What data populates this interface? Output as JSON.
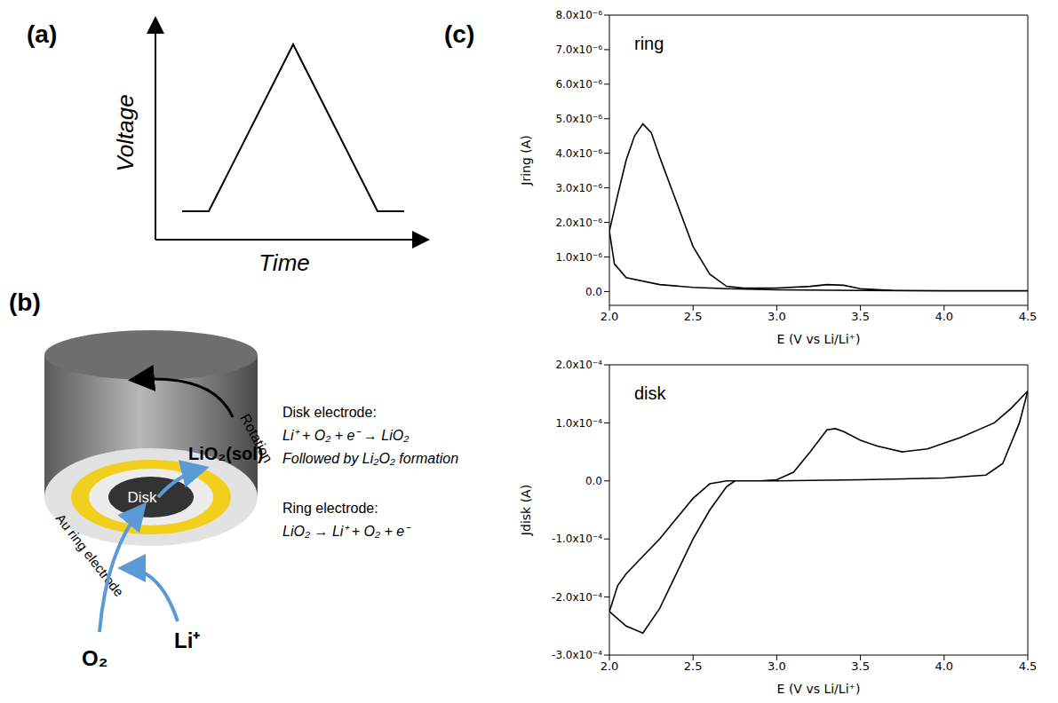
{
  "panels": {
    "a": {
      "label": "(a)",
      "xlabel": "Time",
      "ylabel": "Voltage"
    },
    "b": {
      "label": "(b)",
      "disk": "Disk",
      "rotation": "Rotation",
      "ring_label": "Au ring electrode",
      "product": "LiO₂(sol)",
      "reactant_1": "O₂",
      "reactant_2": "Li⁺",
      "reactions": [
        {
          "heading": "Disk electrode:",
          "lines": [
            "Li⁺ + O₂ + e⁻ → LiO₂",
            "Followed by Li₂O₂ formation"
          ]
        },
        {
          "heading": "Ring electrode:",
          "lines": [
            "LiO₂ → Li⁺ + O₂ + e⁻"
          ]
        }
      ]
    },
    "c": {
      "label": "(c)"
    }
  },
  "chart_data": [
    {
      "type": "line",
      "title": "ring",
      "xlabel": "E (V vs Li/Li⁺)",
      "ylabel": "Jring (A)",
      "color": "#000000",
      "x": [
        4.5,
        4.0,
        3.5,
        3.0,
        2.7,
        2.5,
        2.3,
        2.1,
        2.03,
        2.0,
        2.05,
        2.1,
        2.15,
        2.2,
        2.25,
        2.3,
        2.4,
        2.5,
        2.6,
        2.7,
        2.8,
        3.0,
        3.2,
        3.3,
        3.4,
        3.5,
        3.7,
        4.0,
        4.5
      ],
      "values": [
        2e-08,
        2e-08,
        3e-08,
        5e-08,
        8e-08,
        1.2e-07,
        2e-07,
        4e-07,
        8e-07,
        1.75e-06,
        2.8e-06,
        3.8e-06,
        4.5e-06,
        4.85e-06,
        4.6e-06,
        3.9e-06,
        2.6e-06,
        1.3e-06,
        5e-07,
        1.5e-07,
        1e-07,
        1e-07,
        1.5e-07,
        2e-07,
        1.8e-07,
        8e-08,
        3e-08,
        2e-08,
        2e-08
      ],
      "xlim": [
        2.0,
        4.5
      ],
      "xticks": [
        {
          "value": 2.0,
          "label": "2.0"
        },
        {
          "value": 2.5,
          "label": "2.5"
        },
        {
          "value": 3.0,
          "label": "3.0"
        },
        {
          "value": 3.5,
          "label": "3.5"
        },
        {
          "value": 4.0,
          "label": "4.0"
        },
        {
          "value": 4.5,
          "label": "4.5"
        }
      ],
      "ylim": [
        -4e-07,
        8e-06
      ],
      "yticks": [
        {
          "value": 0,
          "label": "0.0"
        },
        {
          "value": 1e-06,
          "label": "1.0x10⁻⁶"
        },
        {
          "value": 2e-06,
          "label": "2.0x10⁻⁶"
        },
        {
          "value": 3e-06,
          "label": "3.0x10⁻⁶"
        },
        {
          "value": 4e-06,
          "label": "4.0x10⁻⁶"
        },
        {
          "value": 5e-06,
          "label": "5.0x10⁻⁶"
        },
        {
          "value": 6e-06,
          "label": "6.0x10⁻⁶"
        },
        {
          "value": 7e-06,
          "label": "7.0x10⁻⁶"
        },
        {
          "value": 8e-06,
          "label": "8.0x10⁻⁶"
        }
      ]
    },
    {
      "type": "line",
      "title": "disk",
      "xlabel": "E (V vs Li/Li⁺)",
      "ylabel": "Jdisk (A)",
      "color": "#000000",
      "x": [
        4.5,
        4.45,
        4.35,
        4.25,
        4.0,
        3.5,
        3.0,
        2.75,
        2.7,
        2.6,
        2.5,
        2.4,
        2.3,
        2.2,
        2.1,
        2.0,
        2.05,
        2.1,
        2.2,
        2.3,
        2.4,
        2.5,
        2.6,
        2.7,
        2.9,
        3.0,
        3.1,
        3.2,
        3.3,
        3.35,
        3.4,
        3.5,
        3.6,
        3.75,
        3.9,
        4.1,
        4.3,
        4.4,
        4.5
      ],
      "values": [
        0.000155,
        0.0001,
        3e-05,
        1e-05,
        5e-06,
        2e-06,
        0,
        0,
        -1e-05,
        -5e-05,
        -0.0001,
        -0.00016,
        -0.00022,
        -0.000262,
        -0.00025,
        -0.000225,
        -0.00018,
        -0.00016,
        -0.00013,
        -0.0001,
        -6.5e-05,
        -3e-05,
        -5e-06,
        0,
        0,
        2e-06,
        1.5e-05,
        5e-05,
        8.8e-05,
        9e-05,
        8.5e-05,
        7e-05,
        6e-05,
        5e-05,
        5.5e-05,
        7.5e-05,
        0.0001,
        0.000125,
        0.000155
      ],
      "xlim": [
        2.0,
        4.5
      ],
      "xticks": [
        {
          "value": 2.0,
          "label": "2.0"
        },
        {
          "value": 2.5,
          "label": "2.5"
        },
        {
          "value": 3.0,
          "label": "3.0"
        },
        {
          "value": 3.5,
          "label": "3.5"
        },
        {
          "value": 4.0,
          "label": "4.0"
        },
        {
          "value": 4.5,
          "label": "4.5"
        }
      ],
      "ylim": [
        -0.0003,
        0.0002
      ],
      "yticks": [
        {
          "value": -0.0003,
          "label": "-3.0x10⁻⁴"
        },
        {
          "value": -0.0002,
          "label": "-2.0x10⁻⁴"
        },
        {
          "value": -0.0001,
          "label": "-1.0x10⁻⁴"
        },
        {
          "value": 0,
          "label": "0.0"
        },
        {
          "value": 0.0001,
          "label": "1.0x10⁻⁴"
        },
        {
          "value": 0.0002,
          "label": "2.0x10⁻⁴"
        }
      ]
    }
  ]
}
